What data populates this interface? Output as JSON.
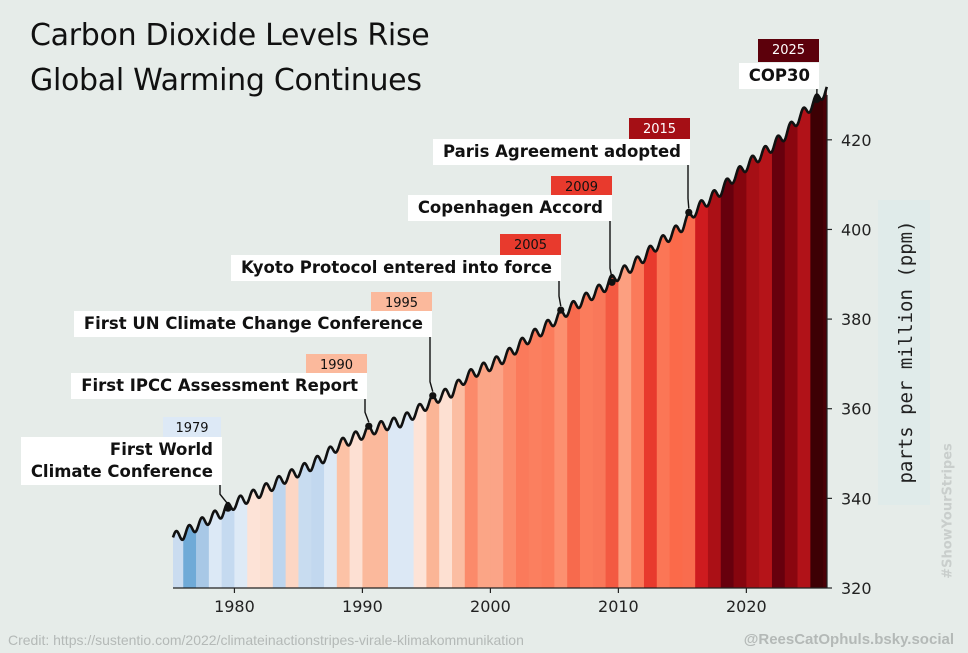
{
  "title_line1": "Carbon Dioxide Levels Rise",
  "title_line2": "Global Warming Continues",
  "credit": "Credit: https://sustentio.com/2022/climateinactionstripes-virale-klimakommunikation",
  "handle": "@ReesCatOphuls.bsky.social",
  "hashtag": "#ShowYourStripes",
  "colors": {
    "background": "#e6ece9",
    "curve": "#111111"
  },
  "chart_data": {
    "type": "area",
    "xlabel": "",
    "ylabel": "parts per million (ppm)",
    "xlim": [
      1975.2,
      2026.3
    ],
    "ylim": [
      320,
      430
    ],
    "x_ticks": [
      1980,
      1990,
      2000,
      2010,
      2020
    ],
    "y_ticks": [
      320,
      340,
      360,
      380,
      400,
      420
    ],
    "co2_annual": [
      [
        1975,
        331.1
      ],
      [
        1976,
        332.0
      ],
      [
        1977,
        333.8
      ],
      [
        1978,
        335.4
      ],
      [
        1979,
        336.8
      ],
      [
        1980,
        338.8
      ],
      [
        1981,
        340.1
      ],
      [
        1982,
        341.4
      ],
      [
        1983,
        343.0
      ],
      [
        1984,
        344.6
      ],
      [
        1985,
        346.0
      ],
      [
        1986,
        347.4
      ],
      [
        1987,
        349.2
      ],
      [
        1988,
        351.6
      ],
      [
        1989,
        353.1
      ],
      [
        1990,
        354.4
      ],
      [
        1991,
        355.6
      ],
      [
        1992,
        356.5
      ],
      [
        1993,
        357.1
      ],
      [
        1994,
        358.9
      ],
      [
        1995,
        360.9
      ],
      [
        1996,
        362.7
      ],
      [
        1997,
        363.8
      ],
      [
        1998,
        366.8
      ],
      [
        1999,
        368.5
      ],
      [
        2000,
        369.7
      ],
      [
        2001,
        371.3
      ],
      [
        2002,
        373.5
      ],
      [
        2003,
        375.8
      ],
      [
        2004,
        377.5
      ],
      [
        2005,
        379.8
      ],
      [
        2006,
        381.9
      ],
      [
        2007,
        383.8
      ],
      [
        2008,
        385.6
      ],
      [
        2009,
        387.4
      ],
      [
        2010,
        389.9
      ],
      [
        2011,
        391.7
      ],
      [
        2012,
        393.9
      ],
      [
        2013,
        396.5
      ],
      [
        2014,
        398.6
      ],
      [
        2015,
        400.8
      ],
      [
        2016,
        404.2
      ],
      [
        2017,
        406.5
      ],
      [
        2018,
        408.7
      ],
      [
        2019,
        411.7
      ],
      [
        2020,
        414.2
      ],
      [
        2021,
        416.4
      ],
      [
        2022,
        418.5
      ],
      [
        2023,
        421.1
      ],
      [
        2024,
        424.6
      ],
      [
        2025,
        427.5
      ]
    ],
    "seasonal_amplitude_ppm": 1.2,
    "stripe_colors": [
      "#cadcf0",
      "#6faad7",
      "#a8c8e6",
      "#dce9f6",
      "#c5daf0",
      "#deeaf6",
      "#fde3d7",
      "#fce0d1",
      "#bdd5ee",
      "#fcd6c4",
      "#c8dcf0",
      "#c2d8ef",
      "#dde9f5",
      "#fcc2a6",
      "#fde0d3",
      "#fbb99c",
      "#fbb99c",
      "#dce8f5",
      "#dce8f5",
      "#fde3d7",
      "#fbb596",
      "#fde0d2",
      "#fbbda2",
      "#fb8a6a",
      "#fba586",
      "#fba487",
      "#fb8c6c",
      "#fb7a5b",
      "#fb7f5f",
      "#fb7b5b",
      "#fc9070",
      "#f76a4d",
      "#fb7c5c",
      "#f9785a",
      "#f35a42",
      "#fc9f80",
      "#fb7a5a",
      "#e83a2d",
      "#fb7656",
      "#fb6a4a",
      "#f96c4e",
      "#ce1b1f",
      "#ab1016",
      "#67000d",
      "#86050e",
      "#a60f15",
      "#b51419",
      "#67000d",
      "#8a060f",
      "#b11218",
      "#3d0004",
      "#4a0007"
    ],
    "stripe_start_year": 1975
  },
  "events": [
    {
      "year": 1979,
      "label": "First World\nClimate Conference",
      "ppm": 337.8,
      "year_color": "#dde9f6",
      "year_text_color": "#111111"
    },
    {
      "year": 1990,
      "label": "First IPCC Assessment Report",
      "ppm": 356.1,
      "year_color": "#fbb99c",
      "year_text_color": "#111111"
    },
    {
      "year": 1995,
      "label": "First UN Climate Change Conference",
      "ppm": 362.9,
      "year_color": "#fbb99c",
      "year_text_color": "#111111"
    },
    {
      "year": 2005,
      "label": "Kyoto Protocol entered into force",
      "ppm": 382.0,
      "year_color": "#e83a2d",
      "year_text_color": "#111111"
    },
    {
      "year": 2009,
      "label": "Copenhagen Accord",
      "ppm": 388.2,
      "year_color": "#e83a2d",
      "year_text_color": "#111111"
    },
    {
      "year": 2015,
      "label": "Paris Agreement adopted",
      "ppm": 403.8,
      "year_color": "#a50f15",
      "year_text_color": "#ffffff"
    },
    {
      "year": 2025,
      "label": "COP30",
      "ppm": 429.0,
      "year_color": "#5c000b",
      "year_text_color": "#ffffff"
    }
  ]
}
